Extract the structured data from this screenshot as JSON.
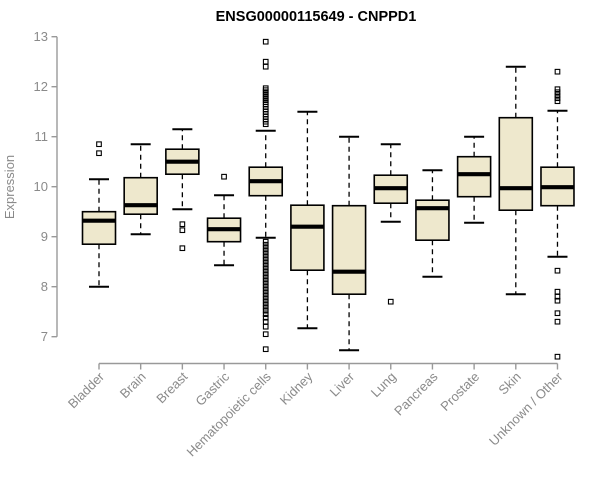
{
  "title": "ENSG00000115649 - CNPPD1",
  "colors": {
    "box_fill": "#EEE8CD",
    "box_stroke": "#000000",
    "axis_line": "#999999",
    "axis_text": "#8a8a8a",
    "title_text": "#000000",
    "background": "#ffffff"
  },
  "chart_data": {
    "type": "boxplot",
    "title": "ENSG00000115649 - CNPPD1",
    "xlabel": "",
    "ylabel": "Expression",
    "ylim": [
      7,
      13
    ],
    "yticks": [
      "7",
      "8",
      "9",
      "10",
      "11",
      "12",
      "13"
    ],
    "grid": false,
    "legend": "none",
    "x_label_rotation_deg": 45,
    "categories": [
      "Bladder",
      "Brain",
      "Breast",
      "Gastric",
      "Hematopoietic cells",
      "Kidney",
      "Liver",
      "Lung",
      "Pancreas",
      "Prostate",
      "Skin",
      "Unknown / Other"
    ],
    "series": [
      {
        "name": "Bladder",
        "whisker_low": 8.0,
        "q1": 8.85,
        "median": 9.32,
        "q3": 9.5,
        "whisker_high": 10.15,
        "outliers": [
          10.85,
          10.67
        ]
      },
      {
        "name": "Brain",
        "whisker_low": 9.05,
        "q1": 9.45,
        "median": 9.63,
        "q3": 10.18,
        "whisker_high": 10.85,
        "outliers": []
      },
      {
        "name": "Breast",
        "whisker_low": 9.55,
        "q1": 10.25,
        "median": 10.5,
        "q3": 10.75,
        "whisker_high": 11.15,
        "outliers": [
          9.25,
          9.13,
          8.77
        ]
      },
      {
        "name": "Gastric",
        "whisker_low": 8.43,
        "q1": 8.9,
        "median": 9.15,
        "q3": 9.37,
        "whisker_high": 9.83,
        "outliers": [
          10.2
        ]
      },
      {
        "name": "Hematopoietic cells",
        "whisker_low": 8.98,
        "q1": 9.82,
        "median": 10.11,
        "q3": 10.39,
        "whisker_high": 11.12,
        "outliers": [
          12.9,
          12.5,
          12.4,
          11.97,
          11.93,
          11.89,
          11.85,
          11.81,
          11.77,
          11.73,
          11.69,
          11.65,
          11.6,
          11.55,
          11.5,
          11.45,
          11.4,
          11.35,
          11.3,
          11.25,
          8.9,
          8.84,
          8.78,
          8.72,
          8.66,
          8.6,
          8.54,
          8.48,
          8.42,
          8.36,
          8.3,
          8.24,
          8.18,
          8.12,
          8.06,
          8.0,
          7.94,
          7.88,
          7.82,
          7.76,
          7.7,
          7.64,
          7.58,
          7.52,
          7.45,
          7.38,
          7.3,
          7.2,
          7.05,
          6.75
        ]
      },
      {
        "name": "Kidney",
        "whisker_low": 7.17,
        "q1": 8.33,
        "median": 9.2,
        "q3": 9.63,
        "whisker_high": 11.5,
        "outliers": []
      },
      {
        "name": "Liver",
        "whisker_low": 6.73,
        "q1": 7.85,
        "median": 8.3,
        "q3": 9.62,
        "whisker_high": 11.0,
        "outliers": []
      },
      {
        "name": "Lung",
        "whisker_low": 9.3,
        "q1": 9.67,
        "median": 9.97,
        "q3": 10.23,
        "whisker_high": 10.85,
        "outliers": [
          7.7
        ]
      },
      {
        "name": "Pancreas",
        "whisker_low": 8.2,
        "q1": 8.93,
        "median": 9.57,
        "q3": 9.73,
        "whisker_high": 10.33,
        "outliers": []
      },
      {
        "name": "Prostate",
        "whisker_low": 9.28,
        "q1": 9.8,
        "median": 10.25,
        "q3": 10.6,
        "whisker_high": 11.0,
        "outliers": []
      },
      {
        "name": "Skin",
        "whisker_low": 7.85,
        "q1": 9.53,
        "median": 9.97,
        "q3": 11.38,
        "whisker_high": 12.4,
        "outliers": []
      },
      {
        "name": "Unknown / Other",
        "whisker_low": 8.6,
        "q1": 9.62,
        "median": 9.99,
        "q3": 10.39,
        "whisker_high": 11.52,
        "outliers": [
          12.3,
          11.95,
          11.89,
          11.83,
          11.77,
          11.71,
          8.32,
          7.9,
          7.8,
          7.72,
          7.47,
          7.3,
          6.6
        ]
      }
    ]
  }
}
